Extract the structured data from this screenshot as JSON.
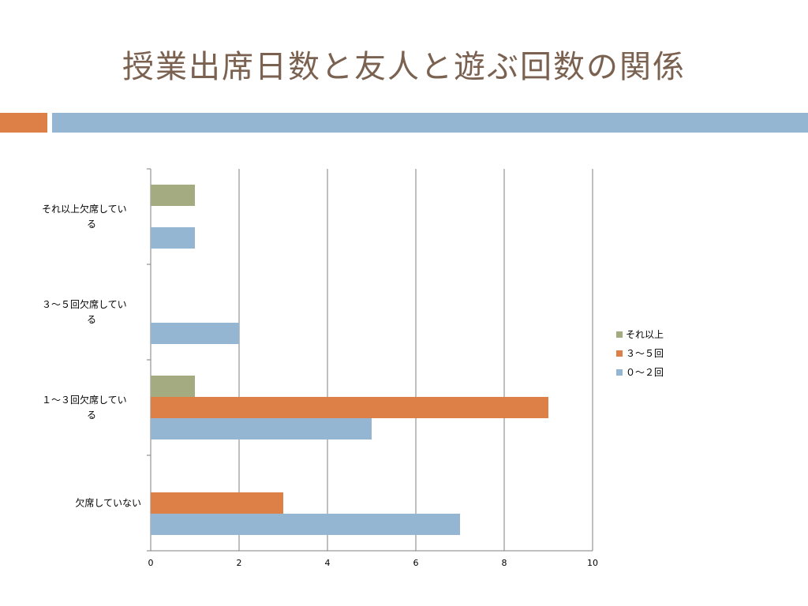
{
  "slide": {
    "title": "授業出席日数と友人と遊ぶ回数の関係",
    "accent_colors": {
      "orange_band": "#dd8047",
      "blue_band": "#94b6d2",
      "title_color": "#7a6150"
    }
  },
  "chart_data": {
    "type": "bar",
    "orientation": "horizontal",
    "title": "",
    "xlabel": "",
    "ylabel": "",
    "categories": [
      [
        "欠席していない"
      ],
      [
        "１～３回欠席してい",
        "る"
      ],
      [
        "３～５回欠席してい",
        "る"
      ],
      [
        "それ以上欠席してい",
        "る"
      ]
    ],
    "series": [
      {
        "name": "０～２回",
        "color": "#94b6d2",
        "values": [
          7,
          5,
          2,
          1
        ]
      },
      {
        "name": "３～５回",
        "color": "#dd8047",
        "values": [
          3,
          9,
          0,
          0
        ]
      },
      {
        "name": "それ以上",
        "color": "#a5ab81",
        "values": [
          0,
          1,
          0,
          1
        ]
      }
    ],
    "xlim": [
      0,
      10
    ],
    "xticks": [
      "0",
      "2",
      "4",
      "6",
      "8",
      "10"
    ],
    "grid": true,
    "legend": {
      "placement": "right",
      "order": [
        "それ以上",
        "３～５回",
        "０～２回"
      ]
    }
  }
}
